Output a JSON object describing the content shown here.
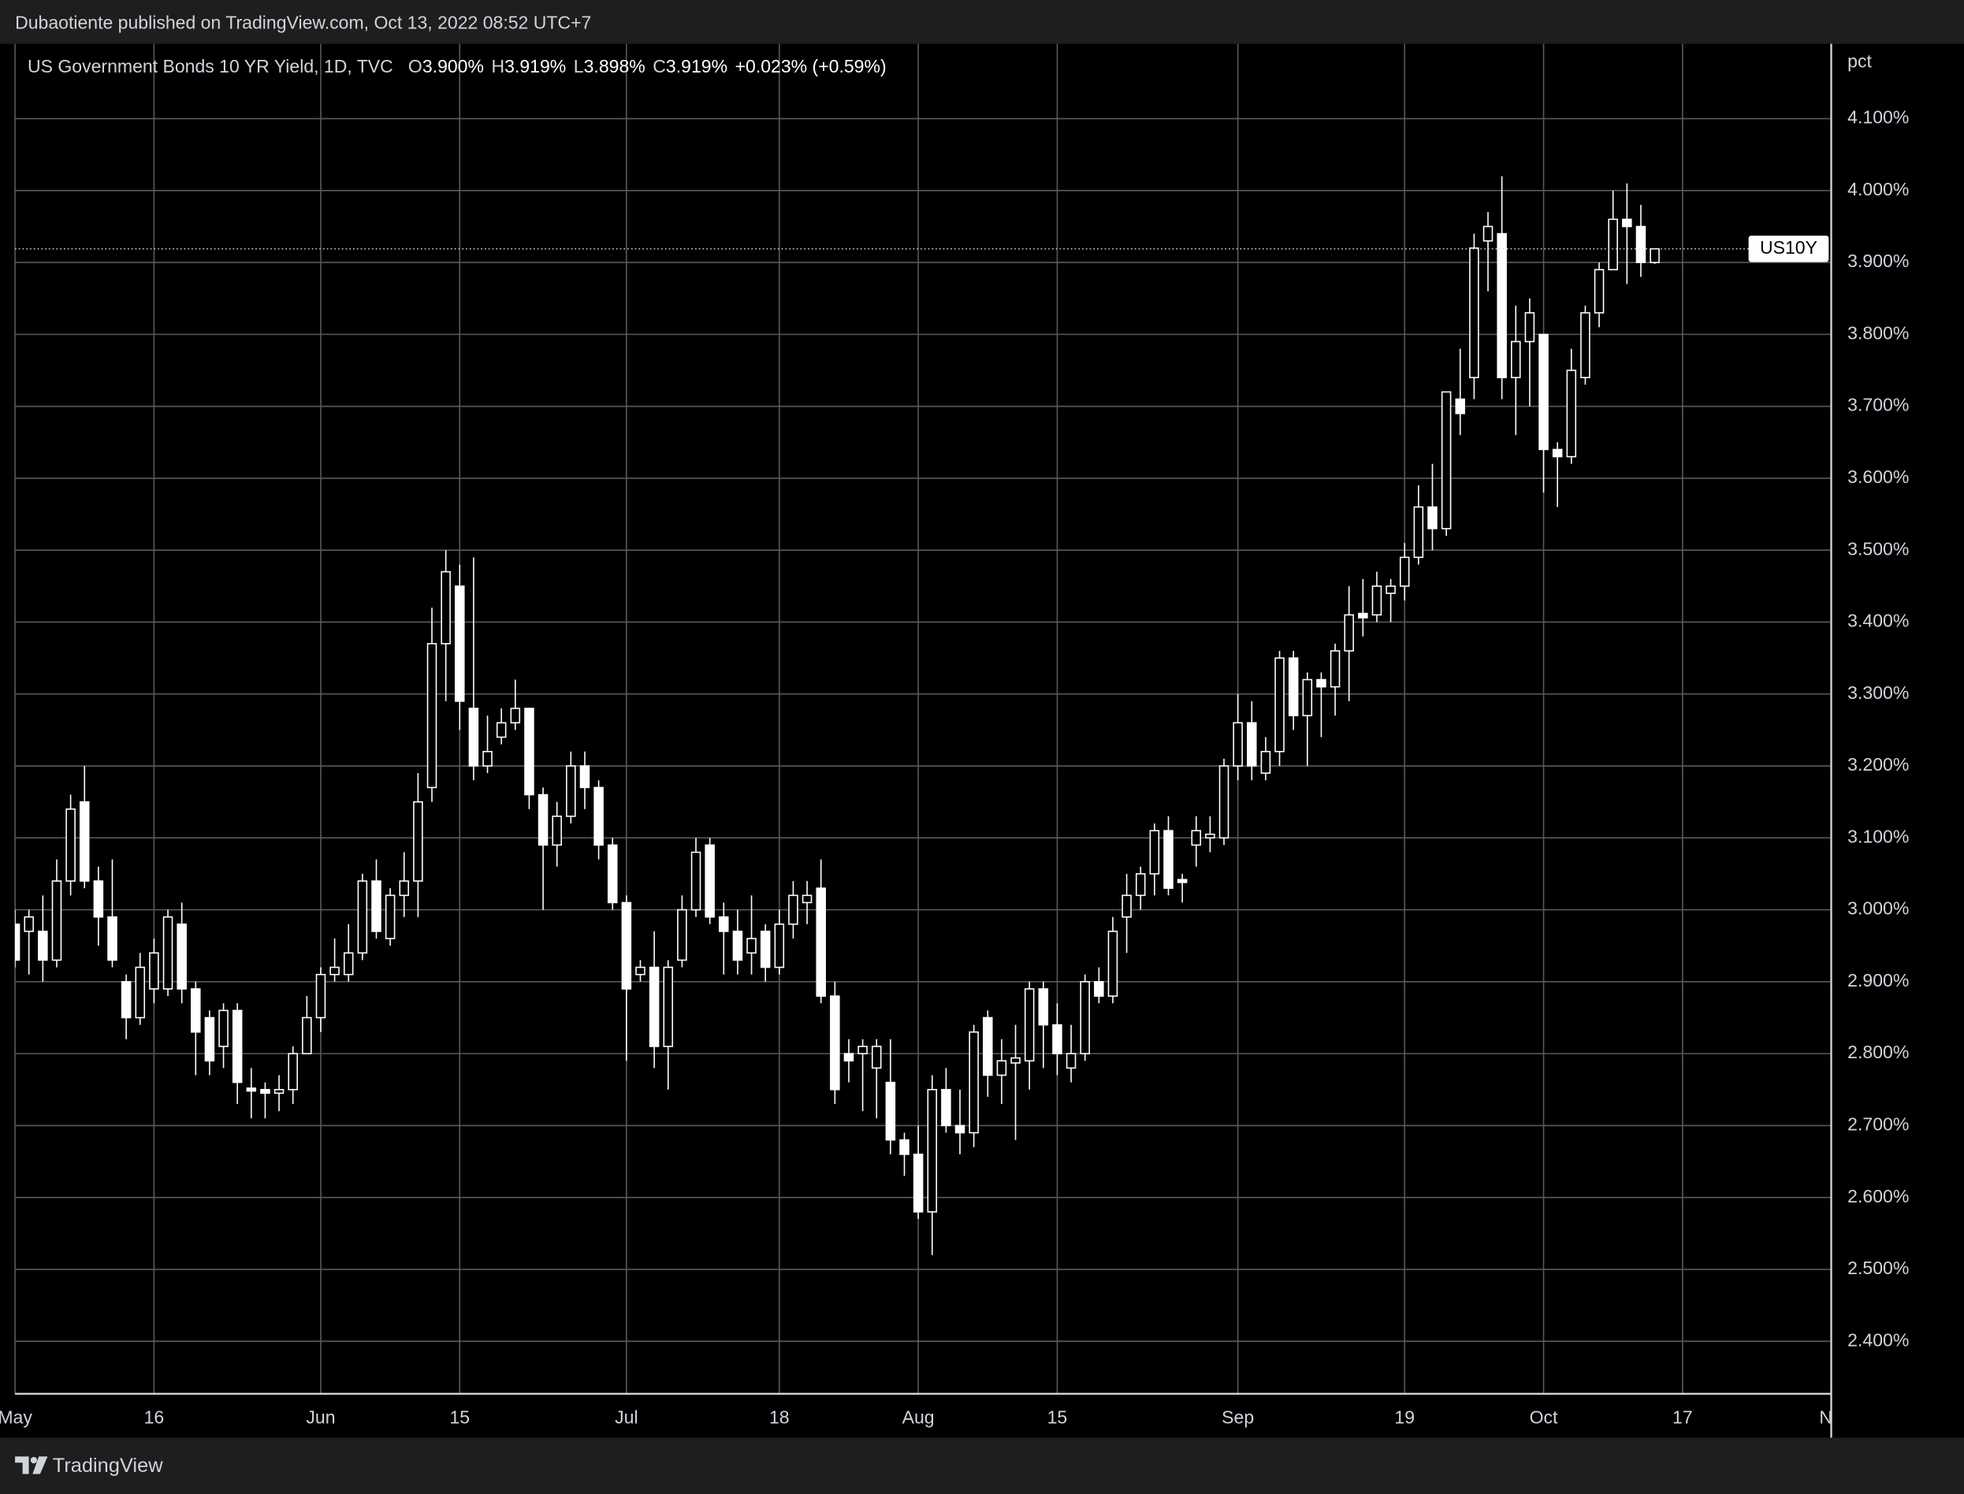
{
  "header": {
    "published": "Dubaotiente published on TradingView.com, Oct 13, 2022 08:52 UTC+7"
  },
  "footer": {
    "brand": "TradingView"
  },
  "chart_data": {
    "type": "candlestick",
    "title": "US Government Bonds 10 YR Yield, 1D, TVC",
    "legend": [
      {
        "key": "O",
        "value": "3.900%"
      },
      {
        "key": "H",
        "value": "3.919%"
      },
      {
        "key": "L",
        "value": "3.898%"
      },
      {
        "key": "C",
        "value": "3.919%"
      }
    ],
    "change": "+0.023%",
    "change_percent": "(+0.59%)",
    "y_unit": "pct",
    "price_label": "US10Y",
    "color": "#ffffff",
    "up_fill": "#000000",
    "down_fill": "#ffffff",
    "grid": true,
    "grid_color": "#5a5a5a",
    "open": [
      2.98,
      2.97,
      2.97,
      2.93,
      3.04,
      3.15,
      3.04,
      2.99,
      2.9,
      2.85,
      2.89,
      2.89,
      2.98,
      2.89,
      2.85,
      2.81,
      2.86,
      2.752,
      2.75,
      2.745,
      2.75,
      2.8,
      2.85,
      2.91,
      2.91,
      2.94,
      3.04,
      2.96,
      3.02,
      3.04,
      3.17,
      3.37,
      3.45,
      3.28,
      3.2,
      3.24,
      3.26,
      3.28,
      3.16,
      3.09,
      3.13,
      3.2,
      3.17,
      3.09,
      3.01,
      2.91,
      2.92,
      2.81,
      2.93,
      3.0,
      3.09,
      2.99,
      2.97,
      2.94,
      2.97,
      2.92,
      2.98,
      3.01,
      3.03,
      2.88,
      2.8,
      2.8,
      2.78,
      2.76,
      2.68,
      2.66,
      2.58,
      2.75,
      2.7,
      2.69,
      2.85,
      2.77,
      2.787,
      2.79,
      2.89,
      2.84,
      2.78,
      2.8,
      2.9,
      2.88,
      2.99,
      3.02,
      3.05,
      3.11,
      3.042,
      3.09,
      3.1,
      3.1,
      3.2,
      3.26,
      3.19,
      3.22,
      3.35,
      3.27,
      3.32,
      3.31,
      3.36,
      3.412,
      3.41,
      3.44,
      3.45,
      3.49,
      3.56,
      3.53,
      3.71,
      3.74,
      3.93,
      3.94,
      3.74,
      3.79,
      3.8,
      3.64,
      3.63,
      3.74,
      3.83,
      3.89,
      3.96,
      3.95,
      3.9
    ],
    "high": [
      3.0,
      3.0,
      3.02,
      3.07,
      3.16,
      3.2,
      3.06,
      3.07,
      2.91,
      2.94,
      2.96,
      3.0,
      3.01,
      2.9,
      2.86,
      2.87,
      2.87,
      2.78,
      2.76,
      2.77,
      2.81,
      2.88,
      2.92,
      2.96,
      2.98,
      3.05,
      3.07,
      3.03,
      3.08,
      3.19,
      3.42,
      3.5,
      3.48,
      3.49,
      3.27,
      3.28,
      3.32,
      3.28,
      3.17,
      3.15,
      3.22,
      3.22,
      3.18,
      3.1,
      3.02,
      2.93,
      2.97,
      2.93,
      3.02,
      3.1,
      3.1,
      3.01,
      3.0,
      3.02,
      2.98,
      3.0,
      3.04,
      3.04,
      3.07,
      2.9,
      2.82,
      2.82,
      2.82,
      2.82,
      2.69,
      2.7,
      2.77,
      2.78,
      2.75,
      2.84,
      2.86,
      2.82,
      2.84,
      2.9,
      2.9,
      2.87,
      2.84,
      2.91,
      2.92,
      2.99,
      3.05,
      3.06,
      3.12,
      3.13,
      3.05,
      3.13,
      3.13,
      3.21,
      3.3,
      3.29,
      3.24,
      3.36,
      3.36,
      3.33,
      3.33,
      3.37,
      3.45,
      3.46,
      3.47,
      3.46,
      3.51,
      3.59,
      3.62,
      3.72,
      3.78,
      3.94,
      3.97,
      4.02,
      3.84,
      3.85,
      3.8,
      3.65,
      3.78,
      3.84,
      3.9,
      4.0,
      4.01,
      3.98,
      3.919
    ],
    "low": [
      2.92,
      2.91,
      2.9,
      2.92,
      3.02,
      3.03,
      2.95,
      2.92,
      2.82,
      2.84,
      2.87,
      2.88,
      2.87,
      2.77,
      2.77,
      2.78,
      2.73,
      2.71,
      2.71,
      2.72,
      2.73,
      2.8,
      2.83,
      2.9,
      2.9,
      2.93,
      2.96,
      2.95,
      2.99,
      2.99,
      3.15,
      3.29,
      3.25,
      3.18,
      3.19,
      3.23,
      3.25,
      3.14,
      3.0,
      3.06,
      3.12,
      3.14,
      3.07,
      3.0,
      2.79,
      2.9,
      2.78,
      2.75,
      2.92,
      2.99,
      2.98,
      2.91,
      2.91,
      2.91,
      2.9,
      2.91,
      2.96,
      2.98,
      2.87,
      2.73,
      2.76,
      2.72,
      2.71,
      2.66,
      2.63,
      2.57,
      2.52,
      2.69,
      2.66,
      2.67,
      2.74,
      2.73,
      2.68,
      2.75,
      2.78,
      2.77,
      2.76,
      2.79,
      2.87,
      2.87,
      2.94,
      3.0,
      3.02,
      3.02,
      3.01,
      3.06,
      3.08,
      3.09,
      3.18,
      3.18,
      3.18,
      3.2,
      3.25,
      3.2,
      3.24,
      3.27,
      3.29,
      3.38,
      3.4,
      3.4,
      3.43,
      3.48,
      3.5,
      3.52,
      3.66,
      3.71,
      3.86,
      3.71,
      3.66,
      3.7,
      3.58,
      3.56,
      3.62,
      3.73,
      3.81,
      3.89,
      3.87,
      3.88,
      3.898
    ],
    "close": [
      2.93,
      2.99,
      2.93,
      3.04,
      3.14,
      3.04,
      2.99,
      2.93,
      2.85,
      2.92,
      2.94,
      2.99,
      2.89,
      2.83,
      2.79,
      2.86,
      2.76,
      2.748,
      2.745,
      2.75,
      2.8,
      2.85,
      2.91,
      2.92,
      2.94,
      3.04,
      2.97,
      3.02,
      3.04,
      3.15,
      3.37,
      3.47,
      3.29,
      3.2,
      3.22,
      3.26,
      3.28,
      3.16,
      3.09,
      3.13,
      3.2,
      3.17,
      3.09,
      3.01,
      2.89,
      2.92,
      2.81,
      2.92,
      3.0,
      3.08,
      2.99,
      2.97,
      2.93,
      2.96,
      2.92,
      2.98,
      3.02,
      3.02,
      2.88,
      2.75,
      2.79,
      2.81,
      2.81,
      2.68,
      2.66,
      2.58,
      2.75,
      2.7,
      2.69,
      2.83,
      2.77,
      2.79,
      2.794,
      2.89,
      2.84,
      2.8,
      2.8,
      2.9,
      2.88,
      2.97,
      3.02,
      3.05,
      3.11,
      3.03,
      3.038,
      3.11,
      3.105,
      3.2,
      3.26,
      3.2,
      3.22,
      3.35,
      3.27,
      3.32,
      3.31,
      3.36,
      3.41,
      3.406,
      3.45,
      3.45,
      3.49,
      3.56,
      3.53,
      3.72,
      3.69,
      3.92,
      3.95,
      3.74,
      3.79,
      3.83,
      3.64,
      3.63,
      3.75,
      3.83,
      3.89,
      3.96,
      3.95,
      3.9,
      3.919
    ],
    "xlim": [
      0,
      130.7
    ],
    "xticks": [
      {
        "value": 0,
        "label": "May"
      },
      {
        "value": 10,
        "label": "16"
      },
      {
        "value": 22,
        "label": "Jun"
      },
      {
        "value": 32,
        "label": "15"
      },
      {
        "value": 44,
        "label": "Jul"
      },
      {
        "value": 55,
        "label": "18"
      },
      {
        "value": 65,
        "label": "Aug"
      },
      {
        "value": 75,
        "label": "15"
      },
      {
        "value": 88,
        "label": "Sep"
      },
      {
        "value": 100,
        "label": "19"
      },
      {
        "value": 110,
        "label": "Oct"
      },
      {
        "value": 120,
        "label": "17"
      },
      {
        "value": 131,
        "label": "Nov"
      }
    ],
    "ylim": [
      2.327,
      4.204
    ],
    "yticks": [
      {
        "value": 2.4,
        "label": "2.400%"
      },
      {
        "value": 2.5,
        "label": "2.500%"
      },
      {
        "value": 2.6,
        "label": "2.600%"
      },
      {
        "value": 2.7,
        "label": "2.700%"
      },
      {
        "value": 2.8,
        "label": "2.800%"
      },
      {
        "value": 2.9,
        "label": "2.900%"
      },
      {
        "value": 3.0,
        "label": "3.000%"
      },
      {
        "value": 3.1,
        "label": "3.100%"
      },
      {
        "value": 3.2,
        "label": "3.200%"
      },
      {
        "value": 3.3,
        "label": "3.300%"
      },
      {
        "value": 3.4,
        "label": "3.400%"
      },
      {
        "value": 3.5,
        "label": "3.500%"
      },
      {
        "value": 3.6,
        "label": "3.600%"
      },
      {
        "value": 3.7,
        "label": "3.700%"
      },
      {
        "value": 3.8,
        "label": "3.800%"
      },
      {
        "value": 3.9,
        "label": "3.900%"
      },
      {
        "value": 4.0,
        "label": "4.000%"
      },
      {
        "value": 4.1,
        "label": "4.100%"
      }
    ]
  }
}
